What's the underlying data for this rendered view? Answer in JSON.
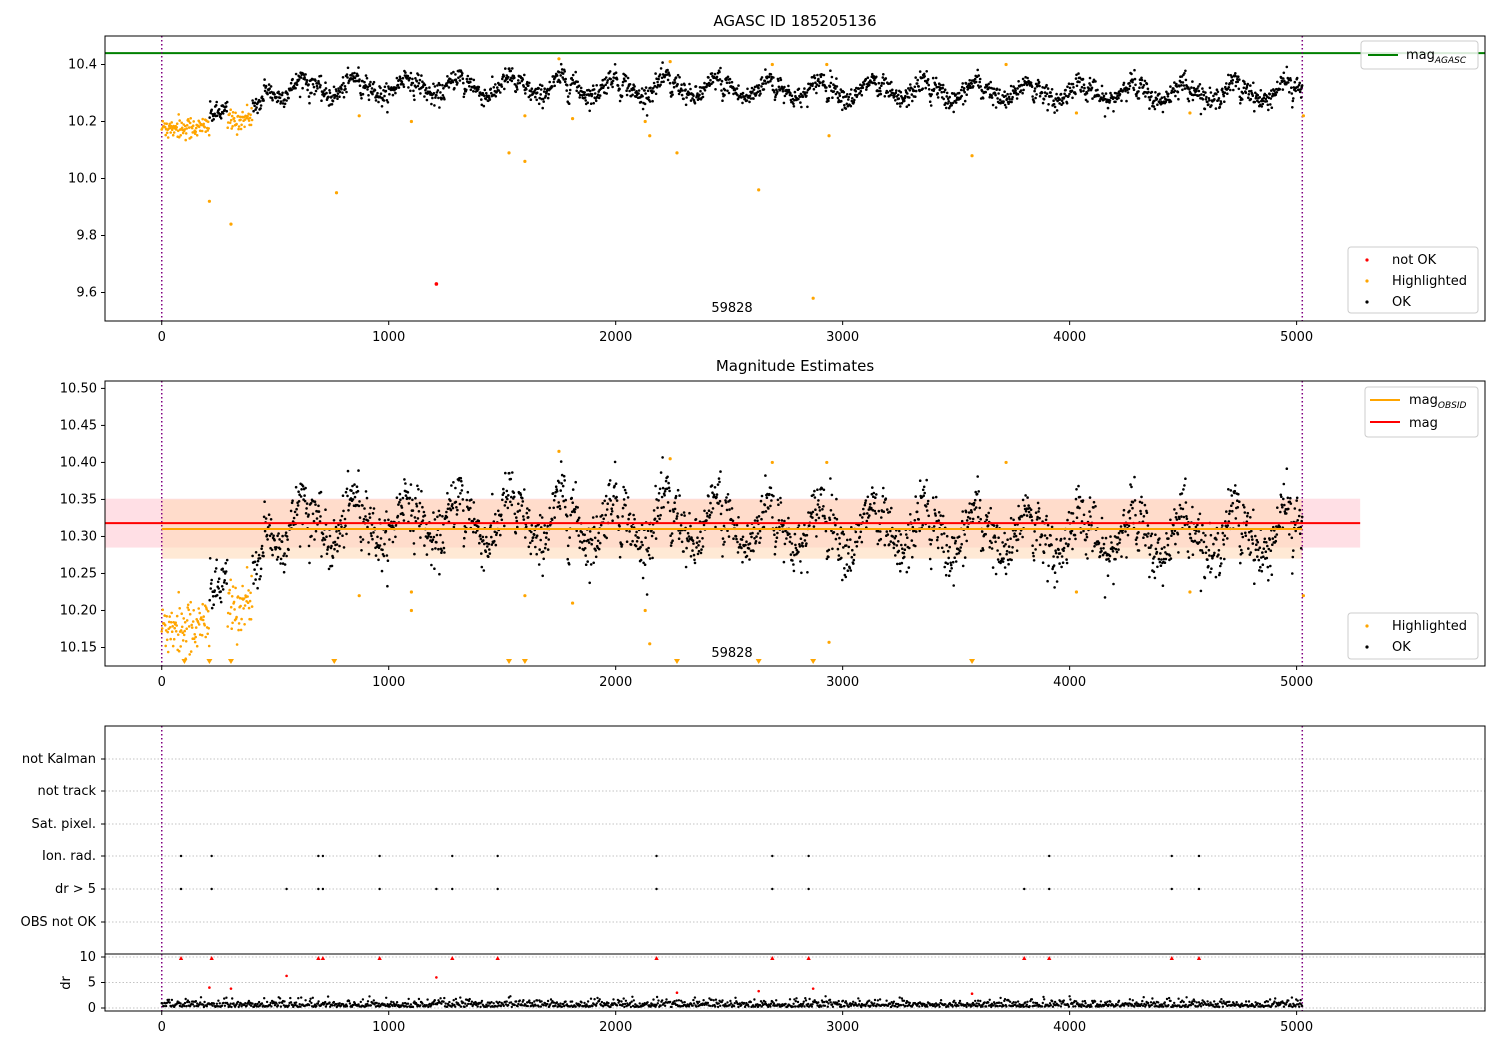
{
  "figure": {
    "suptitle": "",
    "colors": {
      "ok": "#000000",
      "highlighted": "#ffa500",
      "not_ok": "#ff0000",
      "agasc_line": "#008000",
      "obsid_line": "#ffa500",
      "mag_line": "#ff0000",
      "obs_boundary": "#800080",
      "mag_band": "#ffc0cb",
      "obsid_band": "#ffdab9",
      "grid": "#b0b0b0"
    }
  },
  "chart_data": [
    {
      "type": "scatter",
      "title": "AGASC ID 185205136",
      "xlabel": "",
      "ylabel": "",
      "xlim": [
        -250,
        5830
      ],
      "ylim": [
        9.5,
        10.5
      ],
      "xticks": [
        0,
        1000,
        2000,
        3000,
        4000,
        5000
      ],
      "yticks": [
        9.6,
        9.8,
        10.0,
        10.2,
        10.4
      ],
      "ytick_labels": [
        "9.6",
        "9.8",
        "10.0",
        "10.2",
        "10.4"
      ],
      "hline": {
        "name": "mag",
        "sub": "AGASC",
        "y": 10.44
      },
      "obs_boundaries": [
        0,
        5025
      ],
      "obs_label": {
        "text": "59828",
        "x": 2500,
        "y": 9.52
      },
      "legend_upper": "top-right",
      "legend_lower": "bottom-right",
      "legend_entries": [
        "not OK",
        "Highlighted",
        "OK"
      ],
      "not_ok_points": [
        [
          1210,
          9.63
        ]
      ],
      "highlighted_points": [
        [
          210,
          9.92
        ],
        [
          305,
          9.84
        ],
        [
          770,
          9.95
        ],
        [
          870,
          10.22
        ],
        [
          1100,
          10.2
        ],
        [
          1530,
          10.09
        ],
        [
          1600,
          10.06
        ],
        [
          1600,
          10.22
        ],
        [
          1810,
          10.21
        ],
        [
          2130,
          10.2
        ],
        [
          2150,
          10.15
        ],
        [
          2270,
          10.09
        ],
        [
          2240,
          10.41
        ],
        [
          2630,
          9.96
        ],
        [
          2690,
          10.4
        ],
        [
          2870,
          9.58
        ],
        [
          2940,
          10.15
        ],
        [
          2930,
          10.4
        ],
        [
          3570,
          10.08
        ],
        [
          3720,
          10.4
        ],
        [
          4030,
          10.23
        ],
        [
          4530,
          10.23
        ],
        [
          5030,
          10.22
        ],
        [
          1750,
          10.42
        ]
      ]
    },
    {
      "type": "scatter",
      "title": "Magnitude Estimates",
      "xlabel": "",
      "ylabel": "",
      "xlim": [
        -250,
        5830
      ],
      "ylim": [
        10.125,
        10.51
      ],
      "xticks": [
        0,
        1000,
        2000,
        3000,
        4000,
        5000
      ],
      "yticks": [
        10.15,
        10.2,
        10.25,
        10.3,
        10.35,
        10.4,
        10.45,
        10.5
      ],
      "ytick_labels": [
        "10.15",
        "10.20",
        "10.25",
        "10.30",
        "10.35",
        "10.40",
        "10.45",
        "10.50"
      ],
      "mag_line": {
        "name": "mag",
        "y": 10.318,
        "band": [
          10.285,
          10.351
        ],
        "x_range": [
          -250,
          5280
        ]
      },
      "obsid_line": {
        "name": "mag",
        "sub": "OBSID",
        "y": 10.31,
        "band": [
          10.27,
          10.35
        ],
        "x_range": [
          0,
          5025
        ]
      },
      "obs_boundaries": [
        0,
        5025
      ],
      "obs_label": {
        "text": "59828",
        "x": 2500,
        "y": 10.133
      },
      "legend_upper": "top-right",
      "legend_lower": "bottom-right",
      "legend_entries": [
        "Highlighted",
        "OK"
      ],
      "clipped_low_markers": [
        100,
        210,
        305,
        760,
        1530,
        1600,
        2270,
        2630,
        2870,
        3570
      ],
      "highlighted_points": [
        [
          870,
          10.22
        ],
        [
          1100,
          10.2
        ],
        [
          1100,
          10.225
        ],
        [
          1600,
          10.22
        ],
        [
          1810,
          10.21
        ],
        [
          2130,
          10.2
        ],
        [
          2150,
          10.155
        ],
        [
          2240,
          10.405
        ],
        [
          2690,
          10.4
        ],
        [
          2940,
          10.157
        ],
        [
          2930,
          10.4
        ],
        [
          3720,
          10.4
        ],
        [
          4030,
          10.225
        ],
        [
          4530,
          10.225
        ],
        [
          5030,
          10.22
        ],
        [
          1750,
          10.415
        ]
      ]
    },
    {
      "type": "scatter",
      "title": "",
      "xlabel": "",
      "ylabel": "dr",
      "xlim": [
        -250,
        5830
      ],
      "xticks": [
        0,
        1000,
        2000,
        3000,
        4000,
        5000
      ],
      "flag_rows": [
        "not Kalman",
        "not track",
        "Sat. pixel.",
        "Ion. rad.",
        "dr > 5",
        "OBS not OK"
      ],
      "flag_points": {
        "Ion. rad.": [
          85,
          220,
          690,
          710,
          960,
          1280,
          1480,
          2180,
          2690,
          2850,
          3910,
          4450,
          4570
        ],
        "dr > 5": [
          85,
          220,
          550,
          690,
          710,
          960,
          1210,
          1280,
          1480,
          2180,
          2690,
          2850,
          3800,
          3910,
          4450,
          4570
        ]
      },
      "dr_ylim": [
        0,
        10.5
      ],
      "dr_yticks": [
        0,
        5,
        10
      ],
      "dr_high_points": [
        [
          85,
          9.8
        ],
        [
          220,
          9.8
        ],
        [
          690,
          9.8
        ],
        [
          710,
          9.8
        ],
        [
          960,
          9.8
        ],
        [
          1280,
          9.8
        ],
        [
          1480,
          9.8
        ],
        [
          2180,
          9.8
        ],
        [
          2690,
          9.8
        ],
        [
          2850,
          9.8
        ],
        [
          3800,
          9.8
        ],
        [
          3910,
          9.8
        ],
        [
          4450,
          9.8
        ],
        [
          4570,
          9.8
        ],
        [
          210,
          4
        ],
        [
          305,
          3.8
        ],
        [
          550,
          6.3
        ],
        [
          1210,
          6
        ],
        [
          2270,
          3
        ],
        [
          2630,
          3.3
        ],
        [
          2870,
          3.8
        ],
        [
          3570,
          2.8
        ]
      ],
      "obs_boundaries": [
        0,
        5025
      ]
    }
  ]
}
